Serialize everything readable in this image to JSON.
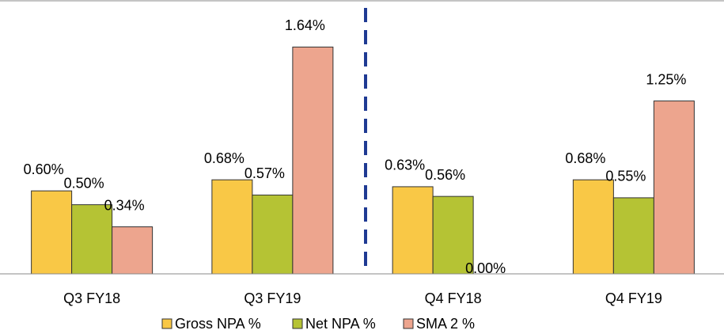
{
  "chart_data": {
    "type": "bar",
    "categories": [
      "Q3 FY18",
      "Q3 FY19",
      "Q4 FY18",
      "Q4 FY19"
    ],
    "series": [
      {
        "name": "Gross NPA %",
        "color": "#f9c846",
        "values": [
          0.6,
          0.68,
          0.63,
          0.68
        ],
        "value_labels": [
          "0.60%",
          "0.68%",
          "0.63%",
          "0.68%"
        ]
      },
      {
        "name": "Net NPA %",
        "color": "#b5c334",
        "values": [
          0.5,
          0.57,
          0.56,
          0.55
        ],
        "value_labels": [
          "0.50%",
          "0.57%",
          "0.56%",
          "0.55%"
        ]
      },
      {
        "name": "SMA 2 %",
        "color": "#eda58e",
        "values": [
          0.34,
          1.64,
          0.0,
          1.25
        ],
        "value_labels": [
          "0.34%",
          "1.64%",
          "0.00%",
          "1.25%"
        ]
      }
    ],
    "ylim": [
      0,
      1.9
    ],
    "legend": "bottom"
  }
}
